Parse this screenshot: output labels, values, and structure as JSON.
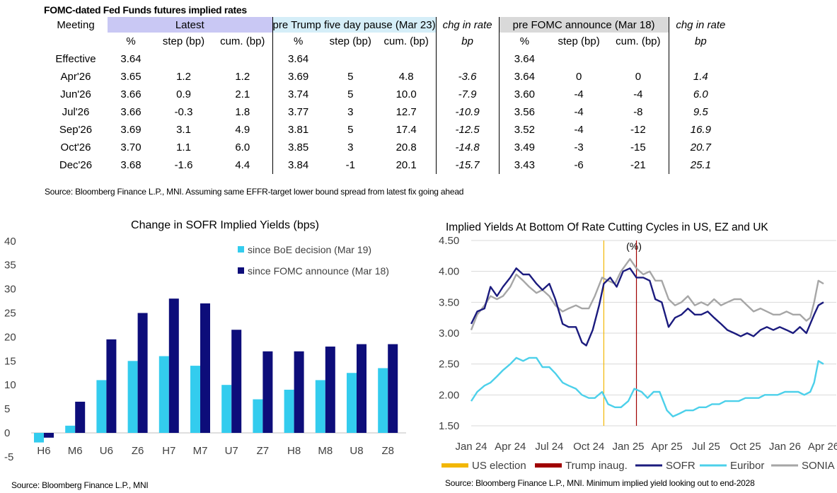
{
  "table": {
    "title": "FOMC-dated Fed Funds futures implied rates",
    "header_groups": [
      "Meeting",
      "Latest",
      "pre Trump five day pause (Mar 23)",
      "chg in rate",
      "pre FOMC announce (Mar 18)",
      "chg in rate"
    ],
    "subheaders": [
      "%",
      "step (bp)",
      "cum. (bp)",
      "%",
      "step (bp)",
      "cum. (bp)",
      "bp",
      "%",
      "step (bp)",
      "cum. (bp)",
      "bp"
    ],
    "rows": [
      {
        "meeting": "Effective",
        "cells": [
          "3.64",
          "",
          "",
          "3.64",
          "",
          "",
          "",
          "3.64",
          "",
          "",
          ""
        ]
      },
      {
        "meeting": "Apr'26",
        "cells": [
          "3.65",
          "1.2",
          "1.2",
          "3.69",
          "5",
          "4.8",
          "-3.6",
          "3.64",
          "0",
          "0",
          "1.4"
        ]
      },
      {
        "meeting": "Jun'26",
        "cells": [
          "3.66",
          "0.9",
          "2.1",
          "3.74",
          "5",
          "10.0",
          "-7.9",
          "3.60",
          "-4",
          "-4",
          "6.0"
        ]
      },
      {
        "meeting": "Jul'26",
        "cells": [
          "3.66",
          "-0.3",
          "1.8",
          "3.77",
          "3",
          "12.7",
          "-10.9",
          "3.56",
          "-4",
          "-8",
          "9.5"
        ]
      },
      {
        "meeting": "Sep'26",
        "cells": [
          "3.69",
          "3.1",
          "4.9",
          "3.81",
          "5",
          "17.4",
          "-12.5",
          "3.52",
          "-4",
          "-12",
          "16.9"
        ]
      },
      {
        "meeting": "Oct'26",
        "cells": [
          "3.70",
          "1.1",
          "6.0",
          "3.85",
          "3",
          "20.8",
          "-14.8",
          "3.49",
          "-3",
          "-15",
          "20.7"
        ]
      },
      {
        "meeting": "Dec'26",
        "cells": [
          "3.68",
          "-1.6",
          "4.4",
          "3.84",
          "-1",
          "20.1",
          "-15.7",
          "3.43",
          "-6",
          "-21",
          "25.1"
        ]
      }
    ],
    "source": "Source: Bloomberg Finance L.P., MNI. Assuming same  EFFR-target lower bound spread from latest fix going ahead"
  },
  "chart_data": [
    {
      "type": "bar",
      "title": "Change in SOFR Implied Yields (bps)",
      "categories": [
        "H6",
        "M6",
        "U6",
        "Z6",
        "H7",
        "M7",
        "U7",
        "Z7",
        "H8",
        "M8",
        "U8",
        "Z8"
      ],
      "series": [
        {
          "name": "since BoE decision (Mar 19)",
          "color": "#33ccee",
          "values": [
            -2,
            1.5,
            11,
            15,
            16,
            14,
            10,
            7,
            9,
            11,
            12.5,
            13.5
          ]
        },
        {
          "name": "since FOMC announce (Mar 18)",
          "color": "#0d0d7a",
          "values": [
            -1,
            6.5,
            19.5,
            25,
            28,
            27,
            21.5,
            17,
            17,
            18,
            18.5,
            18.5
          ]
        }
      ],
      "ylim": [
        -5,
        40
      ],
      "yticks": [
        "40",
        "35",
        "30",
        "25",
        "20",
        "15",
        "10",
        "5",
        "0",
        "-5"
      ],
      "legend": "top-right",
      "source": "Source: Bloomberg Finance L.P., MNI"
    },
    {
      "type": "line",
      "title": "Implied Yields At Bottom Of Rate Cutting Cycles in US, EZ and UK",
      "unit_label": "(%)",
      "x_range": [
        "2024-01-01",
        "2026-04-01"
      ],
      "xticks": [
        "Jan 24",
        "Apr 24",
        "Jul 24",
        "Oct 24",
        "Jan 25",
        "Apr 25",
        "Jul 25",
        "Oct 25",
        "Jan 26",
        "Apr 26"
      ],
      "ylim": [
        1.5,
        4.5
      ],
      "yticks": [
        "4.50",
        "4.00",
        "3.50",
        "3.00",
        "2.50",
        "2.00",
        "1.50"
      ],
      "grid": true,
      "legend": "bottom",
      "events": [
        {
          "name": "US election",
          "date": "2024-11-05",
          "color": "#f2b705"
        },
        {
          "name": "Trump inaug.",
          "date": "2025-01-20",
          "color": "#a00000"
        }
      ],
      "series": [
        {
          "name": "SOFR",
          "color": "#1b1b7e",
          "points": [
            [
              "2024-01-01",
              3.15
            ],
            [
              "2024-01-15",
              3.35
            ],
            [
              "2024-02-01",
              3.4
            ],
            [
              "2024-02-15",
              3.75
            ],
            [
              "2024-03-01",
              3.6
            ],
            [
              "2024-03-15",
              3.75
            ],
            [
              "2024-04-01",
              3.9
            ],
            [
              "2024-04-15",
              4.05
            ],
            [
              "2024-05-01",
              3.95
            ],
            [
              "2024-05-15",
              3.95
            ],
            [
              "2024-06-01",
              3.8
            ],
            [
              "2024-06-15",
              3.7
            ],
            [
              "2024-07-01",
              3.8
            ],
            [
              "2024-07-15",
              3.55
            ],
            [
              "2024-08-01",
              3.15
            ],
            [
              "2024-08-15",
              3.1
            ],
            [
              "2024-09-01",
              3.1
            ],
            [
              "2024-09-15",
              2.85
            ],
            [
              "2024-09-25",
              2.8
            ],
            [
              "2024-10-10",
              3.05
            ],
            [
              "2024-10-25",
              3.45
            ],
            [
              "2024-11-05",
              3.8
            ],
            [
              "2024-11-20",
              3.9
            ],
            [
              "2024-12-05",
              3.75
            ],
            [
              "2024-12-20",
              4.0
            ],
            [
              "2025-01-05",
              4.05
            ],
            [
              "2025-01-20",
              3.9
            ],
            [
              "2025-02-05",
              3.9
            ],
            [
              "2025-02-20",
              3.85
            ],
            [
              "2025-03-05",
              3.55
            ],
            [
              "2025-03-20",
              3.5
            ],
            [
              "2025-04-05",
              3.1
            ],
            [
              "2025-04-20",
              3.25
            ],
            [
              "2025-05-05",
              3.3
            ],
            [
              "2025-05-20",
              3.4
            ],
            [
              "2025-06-05",
              3.3
            ],
            [
              "2025-06-20",
              3.3
            ],
            [
              "2025-07-05",
              3.35
            ],
            [
              "2025-07-20",
              3.25
            ],
            [
              "2025-08-05",
              3.15
            ],
            [
              "2025-08-20",
              3.05
            ],
            [
              "2025-09-05",
              3.0
            ],
            [
              "2025-09-20",
              2.95
            ],
            [
              "2025-10-05",
              3.0
            ],
            [
              "2025-10-20",
              2.95
            ],
            [
              "2025-11-05",
              3.05
            ],
            [
              "2025-11-20",
              3.1
            ],
            [
              "2025-12-05",
              3.05
            ],
            [
              "2025-12-20",
              3.1
            ],
            [
              "2026-01-05",
              3.05
            ],
            [
              "2026-01-20",
              3.0
            ],
            [
              "2026-02-05",
              3.1
            ],
            [
              "2026-02-20",
              3.0
            ],
            [
              "2026-03-01",
              3.15
            ],
            [
              "2026-03-10",
              3.3
            ],
            [
              "2026-03-20",
              3.45
            ],
            [
              "2026-04-01",
              3.5
            ]
          ]
        },
        {
          "name": "Euribor",
          "color": "#4cd0ea",
          "points": [
            [
              "2024-01-01",
              1.9
            ],
            [
              "2024-01-15",
              2.05
            ],
            [
              "2024-02-01",
              2.15
            ],
            [
              "2024-02-15",
              2.2
            ],
            [
              "2024-03-01",
              2.3
            ],
            [
              "2024-03-15",
              2.4
            ],
            [
              "2024-04-01",
              2.5
            ],
            [
              "2024-04-15",
              2.6
            ],
            [
              "2024-05-01",
              2.55
            ],
            [
              "2024-05-15",
              2.6
            ],
            [
              "2024-06-01",
              2.6
            ],
            [
              "2024-06-15",
              2.45
            ],
            [
              "2024-07-01",
              2.45
            ],
            [
              "2024-07-15",
              2.35
            ],
            [
              "2024-08-01",
              2.2
            ],
            [
              "2024-08-15",
              2.15
            ],
            [
              "2024-09-01",
              2.1
            ],
            [
              "2024-09-15",
              2.0
            ],
            [
              "2024-10-01",
              1.95
            ],
            [
              "2024-10-15",
              1.95
            ],
            [
              "2024-11-01",
              2.05
            ],
            [
              "2024-11-15",
              1.85
            ],
            [
              "2024-12-01",
              1.8
            ],
            [
              "2024-12-15",
              1.8
            ],
            [
              "2025-01-01",
              1.9
            ],
            [
              "2025-01-15",
              2.1
            ],
            [
              "2025-02-01",
              2.05
            ],
            [
              "2025-02-15",
              1.95
            ],
            [
              "2025-03-01",
              2.05
            ],
            [
              "2025-03-15",
              2.05
            ],
            [
              "2025-04-01",
              1.75
            ],
            [
              "2025-04-15",
              1.65
            ],
            [
              "2025-05-01",
              1.7
            ],
            [
              "2025-05-15",
              1.75
            ],
            [
              "2025-06-01",
              1.75
            ],
            [
              "2025-06-15",
              1.8
            ],
            [
              "2025-07-01",
              1.8
            ],
            [
              "2025-07-15",
              1.85
            ],
            [
              "2025-08-01",
              1.85
            ],
            [
              "2025-08-15",
              1.9
            ],
            [
              "2025-09-01",
              1.9
            ],
            [
              "2025-09-15",
              1.9
            ],
            [
              "2025-10-01",
              1.95
            ],
            [
              "2025-10-15",
              1.95
            ],
            [
              "2025-11-01",
              1.95
            ],
            [
              "2025-11-15",
              2.0
            ],
            [
              "2025-12-01",
              2.0
            ],
            [
              "2025-12-15",
              2.0
            ],
            [
              "2026-01-01",
              2.05
            ],
            [
              "2026-01-15",
              2.05
            ],
            [
              "2026-02-01",
              2.05
            ],
            [
              "2026-02-15",
              2.0
            ],
            [
              "2026-03-01",
              2.05
            ],
            [
              "2026-03-10",
              2.2
            ],
            [
              "2026-03-20",
              2.55
            ],
            [
              "2026-04-01",
              2.5
            ]
          ]
        },
        {
          "name": "SONIA",
          "color": "#a6a6a6",
          "points": [
            [
              "2024-01-01",
              3.05
            ],
            [
              "2024-01-15",
              3.3
            ],
            [
              "2024-02-01",
              3.45
            ],
            [
              "2024-02-15",
              3.6
            ],
            [
              "2024-03-01",
              3.55
            ],
            [
              "2024-03-15",
              3.6
            ],
            [
              "2024-04-01",
              3.75
            ],
            [
              "2024-04-15",
              3.95
            ],
            [
              "2024-05-01",
              3.85
            ],
            [
              "2024-05-15",
              3.75
            ],
            [
              "2024-06-01",
              3.65
            ],
            [
              "2024-06-15",
              3.7
            ],
            [
              "2024-07-01",
              3.6
            ],
            [
              "2024-07-15",
              3.45
            ],
            [
              "2024-08-01",
              3.35
            ],
            [
              "2024-08-15",
              3.4
            ],
            [
              "2024-09-01",
              3.45
            ],
            [
              "2024-09-15",
              3.4
            ],
            [
              "2024-10-01",
              3.4
            ],
            [
              "2024-10-15",
              3.6
            ],
            [
              "2024-11-01",
              3.9
            ],
            [
              "2024-11-15",
              3.85
            ],
            [
              "2024-12-01",
              3.8
            ],
            [
              "2024-12-15",
              4.0
            ],
            [
              "2025-01-05",
              4.2
            ],
            [
              "2025-01-20",
              4.05
            ],
            [
              "2025-02-05",
              3.95
            ],
            [
              "2025-02-20",
              4.0
            ],
            [
              "2025-03-05",
              3.85
            ],
            [
              "2025-03-20",
              3.85
            ],
            [
              "2025-04-05",
              3.55
            ],
            [
              "2025-04-20",
              3.45
            ],
            [
              "2025-05-05",
              3.5
            ],
            [
              "2025-05-20",
              3.6
            ],
            [
              "2025-06-05",
              3.45
            ],
            [
              "2025-06-20",
              3.5
            ],
            [
              "2025-07-05",
              3.45
            ],
            [
              "2025-07-20",
              3.55
            ],
            [
              "2025-08-05",
              3.45
            ],
            [
              "2025-08-20",
              3.5
            ],
            [
              "2025-09-05",
              3.55
            ],
            [
              "2025-09-20",
              3.55
            ],
            [
              "2025-10-05",
              3.45
            ],
            [
              "2025-10-20",
              3.35
            ],
            [
              "2025-11-05",
              3.4
            ],
            [
              "2025-11-20",
              3.35
            ],
            [
              "2025-12-05",
              3.3
            ],
            [
              "2025-12-20",
              3.3
            ],
            [
              "2026-01-05",
              3.35
            ],
            [
              "2026-01-20",
              3.3
            ],
            [
              "2026-02-05",
              3.3
            ],
            [
              "2026-02-20",
              3.2
            ],
            [
              "2026-03-01",
              3.25
            ],
            [
              "2026-03-10",
              3.5
            ],
            [
              "2026-03-20",
              3.85
            ],
            [
              "2026-04-01",
              3.8
            ]
          ]
        }
      ],
      "source": "Source: Bloomberg Finance L.P., MNI. Minimum implied yield looking out to end-2028"
    }
  ]
}
